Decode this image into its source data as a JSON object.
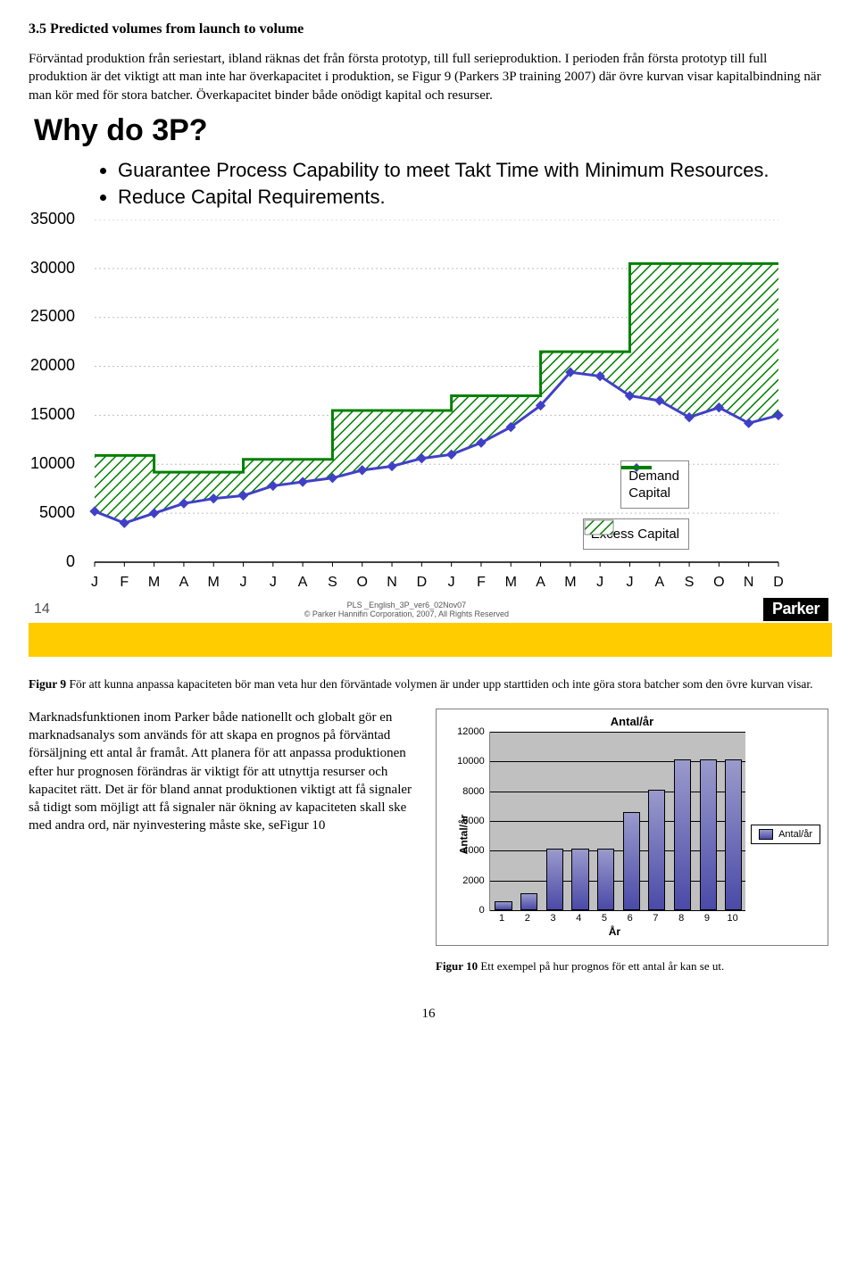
{
  "section_heading": "3.5 Predicted volumes from launch to volume",
  "para1": "Förväntad produktion från seriestart, ibland räknas det från första prototyp, till full serieproduktion. I perioden från första prototyp till full produktion är det viktigt att man inte har överkapacitet i produktion, se Figur 9 (Parkers 3P training 2007) där övre kurvan visar kapitalbindning när man kör med för stora batcher. Överkapacitet binder både onödigt kapital och resurser.",
  "slide": {
    "title": "Why do 3P?",
    "bullets": [
      "Guarantee Process Capability to meet Takt Time with Minimum Resources.",
      "Reduce Capital Requirements."
    ],
    "chart": {
      "type": "line+stepped-area",
      "y_ticks": [
        0,
        5000,
        10000,
        15000,
        20000,
        25000,
        30000,
        35000
      ],
      "y_max": 35000,
      "x_labels": [
        "J",
        "F",
        "M",
        "A",
        "M",
        "J",
        "J",
        "A",
        "S",
        "O",
        "N",
        "D",
        "J",
        "F",
        "M",
        "A",
        "M",
        "J",
        "J",
        "A",
        "S",
        "O",
        "N",
        "D"
      ],
      "demand_values": [
        5200,
        4000,
        5000,
        6000,
        6500,
        6800,
        7800,
        8200,
        8600,
        9400,
        9800,
        10600,
        11000,
        12200,
        13800,
        16000,
        19400,
        19000,
        17000,
        16500,
        14800,
        15800,
        14200,
        15000
      ],
      "capital_steps": [
        {
          "from": 0,
          "to": 2,
          "value": 10900
        },
        {
          "from": 2,
          "to": 5,
          "value": 9200
        },
        {
          "from": 5,
          "to": 8,
          "value": 10500
        },
        {
          "from": 8,
          "to": 12,
          "value": 15500
        },
        {
          "from": 12,
          "to": 15,
          "value": 17000
        },
        {
          "from": 15,
          "to": 18,
          "value": 21500
        },
        {
          "from": 18,
          "to": 24,
          "value": 30500
        }
      ],
      "demand_color": "#4040c7",
      "demand_marker_fill": "#4040c7",
      "capital_stroke": "#008000",
      "capital_fill": "#ffffff",
      "hatch_color": "#008000",
      "grid_color": "#bfbfbf",
      "axis_color": "#000000",
      "area_between_label": "Excess Capital",
      "legend": {
        "demand": "Demand",
        "capital": "Capital"
      }
    },
    "footer_page": "14",
    "footer_copy_line1": "PLS _English_3P_ver6_02Nov07",
    "footer_copy_line2": "© Parker Hannifin Corporation, 2007, All Rights Reserved",
    "logo_text": "Parker"
  },
  "figure9_caption_prefix": "Figur 9 ",
  "figure9_caption_rest": "För att kunna anpassa kapaciteten bör man veta hur den förväntade volymen är under upp starttiden och inte göra stora batcher som den övre kurvan visar.",
  "para2": "Marknadsfunktionen inom Parker både nationellt och globalt gör en marknadsanalys som används för att skapa en prognos på förväntad försäljning ett antal år framåt. Att planera för att anpassa produktionen efter hur prognosen förändras är viktigt för att utnyttja resurser och kapacitet rätt. Det är för bland annat produktionen viktigt att få signaler så tidigt som möjligt att få signaler när ökning av kapaciteten skall ske med andra ord, när nyinvestering måste ske, seFigur 10",
  "bar_chart": {
    "type": "bar",
    "title": "Antal/år",
    "y_label": "Antal/år",
    "x_label": "År",
    "legend": "Antal/år",
    "x_values": [
      "1",
      "2",
      "3",
      "4",
      "5",
      "6",
      "7",
      "8",
      "9",
      "10"
    ],
    "values": [
      500,
      1000,
      4000,
      4000,
      4000,
      6500,
      8000,
      10000,
      10000,
      10000
    ],
    "y_ticks": [
      0,
      2000,
      4000,
      6000,
      8000,
      10000,
      12000
    ],
    "y_max": 12000,
    "bar_fill_start": "#9a9acc",
    "bar_fill_end": "#4a4aa8",
    "plot_bg": "#c0c0c0",
    "border_color": "#7f7f7f"
  },
  "figure10_caption_prefix": "Figur 10 ",
  "figure10_caption_rest": "Ett exempel på hur prognos för ett antal år kan se ut.",
  "page_number": "16"
}
